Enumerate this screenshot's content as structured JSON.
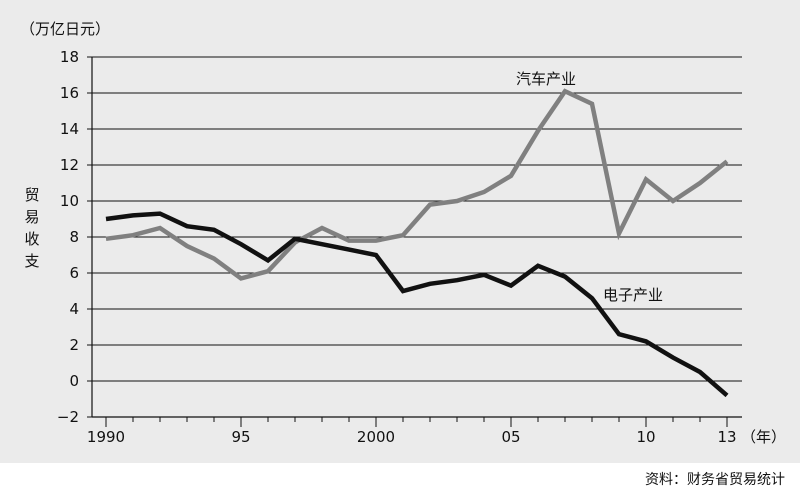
{
  "chart_data": {
    "type": "line",
    "unit_label": "（万亿日元）",
    "ylabel": "贸易收支",
    "x_unit_label": "（年）",
    "x_tick_labels": [
      "1990",
      "95",
      "2000",
      "05",
      "10",
      "13"
    ],
    "x_tick_years": [
      1990,
      1995,
      2000,
      2005,
      2010,
      2013
    ],
    "ylim": [
      -2,
      18
    ],
    "y_ticks": [
      -2,
      0,
      2,
      4,
      6,
      8,
      10,
      12,
      14,
      16,
      18
    ],
    "y_tick_labels": [
      "−2",
      "0",
      "2",
      "4",
      "6",
      "8",
      "10",
      "12",
      "14",
      "16",
      "18"
    ],
    "grid": true,
    "x": [
      1990,
      1991,
      1992,
      1993,
      1994,
      1995,
      1996,
      1997,
      1998,
      1999,
      2000,
      2001,
      2002,
      2003,
      2004,
      2005,
      2006,
      2007,
      2008,
      2009,
      2010,
      2011,
      2012,
      2013
    ],
    "series": [
      {
        "name": "汽车产业",
        "color": "#808080",
        "values": [
          7.9,
          8.1,
          8.5,
          7.5,
          6.8,
          5.7,
          6.1,
          7.7,
          8.5,
          7.8,
          7.8,
          8.1,
          9.8,
          10.0,
          10.5,
          11.4,
          13.9,
          16.1,
          15.4,
          8.2,
          11.2,
          10.0,
          11.0,
          12.2
        ]
      },
      {
        "name": "电子产业",
        "color": "#111111",
        "values": [
          9.0,
          9.2,
          9.3,
          8.6,
          8.4,
          7.6,
          6.7,
          7.9,
          7.6,
          7.3,
          7.0,
          5.0,
          5.4,
          5.6,
          5.9,
          5.3,
          6.4,
          5.8,
          4.6,
          2.6,
          2.2,
          1.3,
          0.5,
          -0.8
        ]
      }
    ],
    "source": "资料：财务省贸易统计"
  }
}
